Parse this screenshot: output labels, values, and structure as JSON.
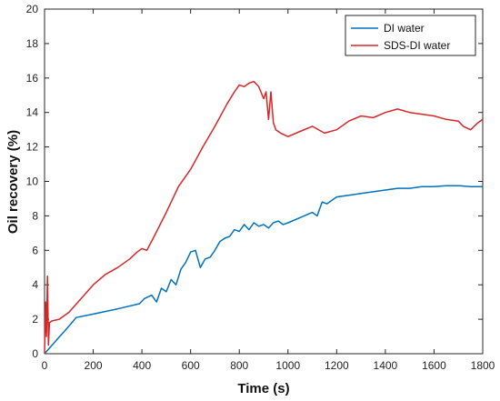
{
  "chart_data": {
    "type": "line",
    "xlabel": "Time (s)",
    "ylabel": "Oil recovery (%)",
    "xlim": [
      0,
      1800
    ],
    "ylim": [
      0,
      20
    ],
    "x_ticks": [
      0,
      200,
      400,
      600,
      800,
      1000,
      1200,
      1400,
      1600,
      1800
    ],
    "y_ticks": [
      0,
      2,
      4,
      6,
      8,
      10,
      12,
      14,
      16,
      18,
      20
    ],
    "grid": false,
    "legend_position": "top-right",
    "series": [
      {
        "name": "DI water",
        "color": "#0072BD",
        "x": [
          0,
          50,
          100,
          130,
          200,
          300,
          390,
          410,
          440,
          460,
          480,
          500,
          520,
          540,
          560,
          580,
          600,
          620,
          640,
          660,
          680,
          700,
          720,
          740,
          760,
          780,
          800,
          820,
          840,
          860,
          880,
          900,
          920,
          940,
          960,
          980,
          1000,
          1050,
          1100,
          1120,
          1140,
          1160,
          1200,
          1250,
          1300,
          1350,
          1400,
          1450,
          1500,
          1550,
          1600,
          1650,
          1700,
          1750,
          1800
        ],
        "y": [
          0,
          0.8,
          1.6,
          2.1,
          2.3,
          2.6,
          2.9,
          3.2,
          3.4,
          3.0,
          3.8,
          3.6,
          4.3,
          4.0,
          4.9,
          5.3,
          5.9,
          6.0,
          5.0,
          5.5,
          5.6,
          6.0,
          6.5,
          6.7,
          6.8,
          7.2,
          7.1,
          7.5,
          7.2,
          7.6,
          7.4,
          7.5,
          7.3,
          7.6,
          7.7,
          7.5,
          7.6,
          7.9,
          8.2,
          8.0,
          8.8,
          8.7,
          9.1,
          9.2,
          9.3,
          9.4,
          9.5,
          9.6,
          9.6,
          9.7,
          9.7,
          9.75,
          9.75,
          9.7,
          9.7
        ]
      },
      {
        "name": "SDS-DI water",
        "color": "#D62728",
        "x": [
          0,
          4,
          8,
          12,
          16,
          20,
          30,
          60,
          100,
          150,
          200,
          250,
          300,
          350,
          380,
          400,
          420,
          450,
          500,
          550,
          600,
          650,
          700,
          750,
          780,
          800,
          820,
          840,
          860,
          880,
          900,
          910,
          920,
          930,
          940,
          945,
          950,
          970,
          1000,
          1050,
          1100,
          1150,
          1200,
          1250,
          1300,
          1350,
          1400,
          1450,
          1500,
          1550,
          1600,
          1650,
          1700,
          1720,
          1750,
          1780,
          1800
        ],
        "y": [
          0,
          3.0,
          1.0,
          4.5,
          0.5,
          1.8,
          1.9,
          2.0,
          2.4,
          3.2,
          4.0,
          4.6,
          5.0,
          5.5,
          5.9,
          6.1,
          6.0,
          6.8,
          8.2,
          9.7,
          10.7,
          12.0,
          13.2,
          14.5,
          15.2,
          15.6,
          15.5,
          15.7,
          15.8,
          15.5,
          14.8,
          15.2,
          13.6,
          15.2,
          13.4,
          13.2,
          13.0,
          12.8,
          12.6,
          12.9,
          13.2,
          12.8,
          13.0,
          13.5,
          13.8,
          13.7,
          14.0,
          14.2,
          14.0,
          13.9,
          13.8,
          13.6,
          13.5,
          13.2,
          13.0,
          13.4,
          13.6
        ]
      }
    ]
  }
}
